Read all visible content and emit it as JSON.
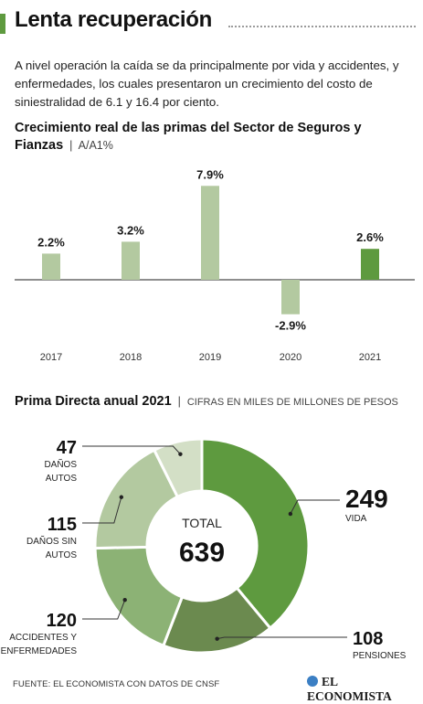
{
  "header": {
    "title": "Lenta recuperación"
  },
  "intro": "A nivel operación la caída se da principalmente por vida y accidentes, y enfermedades, los cuales presentaron un crecimiento del costo de siniestralidad de 6.1 y 16.4 por ciento.",
  "colors": {
    "accent": "#5e9a3f",
    "bar_light": "#b3c9a0",
    "bar_highlight": "#5e9a3f"
  },
  "chart_data": [
    {
      "type": "bar",
      "title": "Crecimiento real de las primas del Sector de Seguros y Fianzas",
      "subtitle": "A/A1%",
      "categories": [
        "2017",
        "2018",
        "2019",
        "2020",
        "2021"
      ],
      "values": [
        2.2,
        3.2,
        7.9,
        -2.9,
        2.6
      ],
      "value_labels": [
        "2.2%",
        "3.2%",
        "7.9%",
        "-2.9%",
        "2.6%"
      ],
      "highlight": "2021",
      "grid": false
    },
    {
      "type": "pie",
      "title": "Prima Directa anual 2021",
      "subtitle": "CIFRAS EN MILES DE MILLONES DE PESOS",
      "center_label": "TOTAL",
      "center_value": "639",
      "slices": [
        {
          "label": "VIDA",
          "value": 249,
          "color": "#5e9a3f"
        },
        {
          "label": "PENSIONES",
          "value": 108,
          "color": "#6b8a4f"
        },
        {
          "label": "ACCIDENTES Y ENFERMEDADES",
          "value": 120,
          "color": "#8cb275"
        },
        {
          "label": "DAÑOS SIN AUTOS",
          "value": 115,
          "color": "#b3c9a0"
        },
        {
          "label": "DAÑOS AUTOS",
          "value": 47,
          "color": "#d3dfc6"
        }
      ]
    }
  ],
  "footer": {
    "source": "FUENTE: EL ECONOMISTA CON DATOS DE CNSF",
    "logo": "EL ECONOMISTA"
  }
}
